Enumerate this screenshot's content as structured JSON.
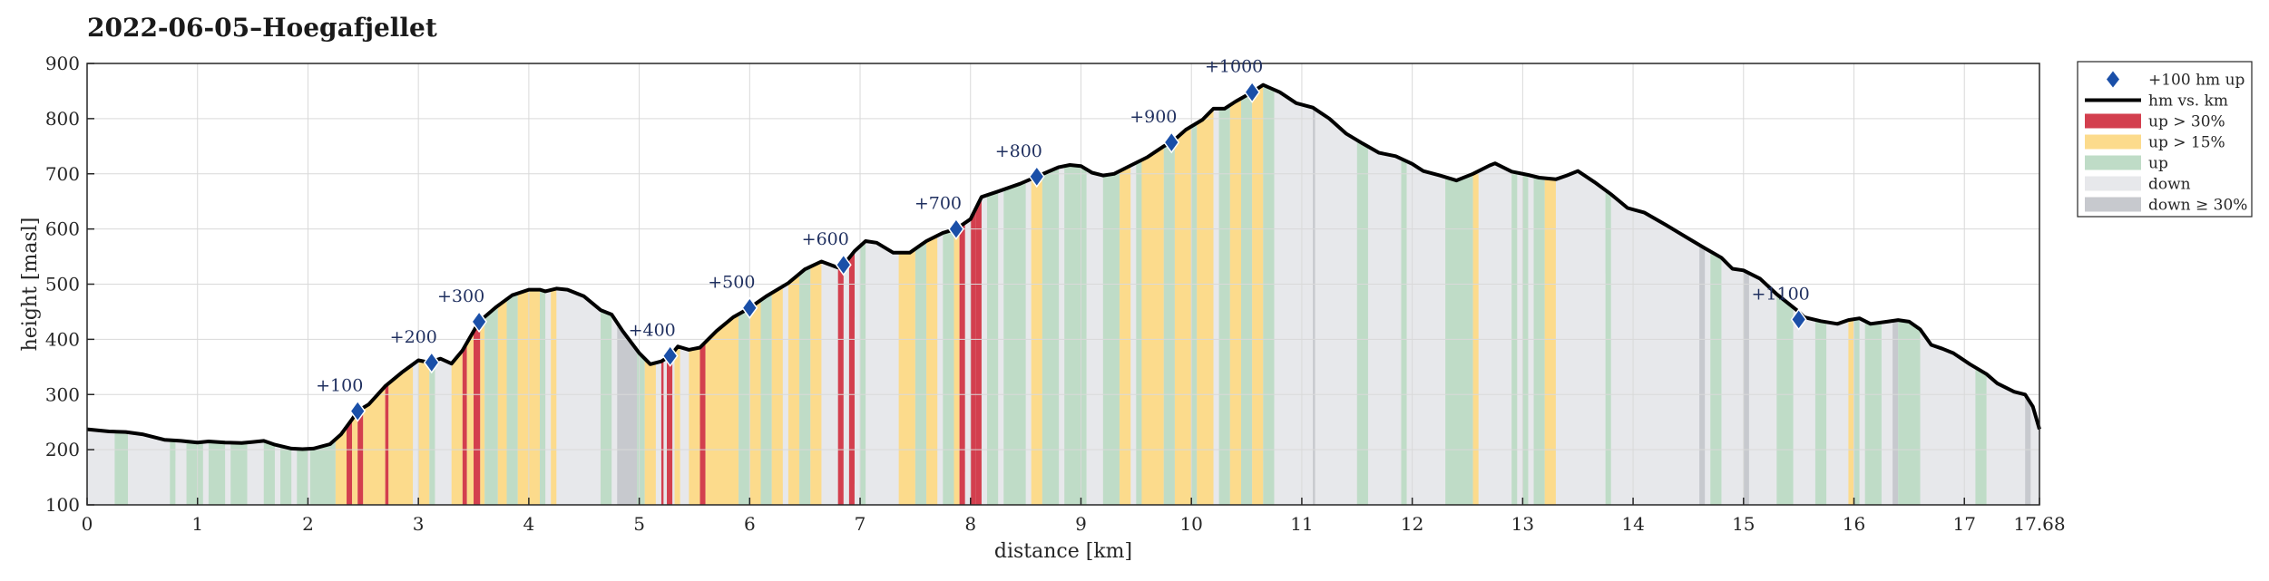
{
  "chart_data": {
    "type": "area",
    "title": "2022-06-05–Hoegafjellet",
    "xlabel": "distance [km]",
    "ylabel": "height [masl]",
    "xlim": [
      0,
      17.68
    ],
    "ylim": [
      100,
      900
    ],
    "xticks": [
      "0",
      "1",
      "2",
      "3",
      "4",
      "5",
      "6",
      "7",
      "8",
      "9",
      "10",
      "11",
      "12",
      "13",
      "14",
      "15",
      "16",
      "17",
      "17.68"
    ],
    "xtick_values": [
      0,
      1,
      2,
      3,
      4,
      5,
      6,
      7,
      8,
      9,
      10,
      11,
      12,
      13,
      14,
      15,
      16,
      17,
      17.68
    ],
    "yticks": [
      "100",
      "200",
      "300",
      "400",
      "500",
      "600",
      "700",
      "800",
      "900"
    ],
    "ytick_values": [
      100,
      200,
      300,
      400,
      500,
      600,
      700,
      800,
      900
    ],
    "grid": true,
    "legend_position": "outside-top-right",
    "legend": [
      {
        "key": "milestone",
        "label": "+100 hm up"
      },
      {
        "key": "line",
        "label": "hm vs. km"
      },
      {
        "key": "up30",
        "label": "up > 30%"
      },
      {
        "key": "up15",
        "label": "up > 15%"
      },
      {
        "key": "up",
        "label": "up"
      },
      {
        "key": "down",
        "label": "down"
      },
      {
        "key": "down30",
        "label": "down ≥ 30%"
      }
    ],
    "colors": {
      "line": "#000000",
      "marker": "#1a4fa8",
      "marker_text": "#1f2f5f",
      "up30": "#d33f4e",
      "up15": "#fcdb8c",
      "up": "#bfdcc7",
      "down": "#e7e8eb",
      "down30": "#c7c9ce",
      "grid": "#d9d9d9"
    },
    "profile": [
      [
        0,
        237
      ],
      [
        0.2,
        233
      ],
      [
        0.35,
        232
      ],
      [
        0.5,
        228
      ],
      [
        0.7,
        218
      ],
      [
        0.85,
        216
      ],
      [
        1.0,
        213
      ],
      [
        1.1,
        215
      ],
      [
        1.25,
        213
      ],
      [
        1.4,
        212
      ],
      [
        1.5,
        214
      ],
      [
        1.6,
        216
      ],
      [
        1.7,
        209
      ],
      [
        1.85,
        202
      ],
      [
        1.95,
        201
      ],
      [
        2.05,
        202
      ],
      [
        2.2,
        210
      ],
      [
        2.3,
        228
      ],
      [
        2.4,
        255
      ],
      [
        2.45,
        270
      ],
      [
        2.55,
        282
      ],
      [
        2.7,
        315
      ],
      [
        2.85,
        340
      ],
      [
        3.0,
        362
      ],
      [
        3.1,
        358
      ],
      [
        3.2,
        365
      ],
      [
        3.3,
        356
      ],
      [
        3.4,
        380
      ],
      [
        3.55,
        432
      ],
      [
        3.7,
        458
      ],
      [
        3.85,
        480
      ],
      [
        4.0,
        490
      ],
      [
        4.1,
        490
      ],
      [
        4.15,
        487
      ],
      [
        4.25,
        492
      ],
      [
        4.35,
        490
      ],
      [
        4.5,
        478
      ],
      [
        4.65,
        453
      ],
      [
        4.75,
        445
      ],
      [
        4.85,
        415
      ],
      [
        5.0,
        375
      ],
      [
        5.1,
        355
      ],
      [
        5.2,
        360
      ],
      [
        5.28,
        370
      ],
      [
        5.35,
        387
      ],
      [
        5.45,
        381
      ],
      [
        5.55,
        385
      ],
      [
        5.7,
        415
      ],
      [
        5.85,
        440
      ],
      [
        6.0,
        457
      ],
      [
        6.15,
        478
      ],
      [
        6.35,
        502
      ],
      [
        6.5,
        527
      ],
      [
        6.65,
        541
      ],
      [
        6.8,
        530
      ],
      [
        6.85,
        535
      ],
      [
        6.95,
        560
      ],
      [
        7.05,
        578
      ],
      [
        7.15,
        575
      ],
      [
        7.3,
        557
      ],
      [
        7.45,
        557
      ],
      [
        7.6,
        578
      ],
      [
        7.75,
        593
      ],
      [
        7.87,
        600
      ],
      [
        8.0,
        618
      ],
      [
        8.1,
        658
      ],
      [
        8.25,
        668
      ],
      [
        8.45,
        682
      ],
      [
        8.6,
        695
      ],
      [
        8.8,
        712
      ],
      [
        8.9,
        716
      ],
      [
        9.0,
        714
      ],
      [
        9.1,
        702
      ],
      [
        9.2,
        697
      ],
      [
        9.3,
        700
      ],
      [
        9.45,
        715
      ],
      [
        9.6,
        730
      ],
      [
        9.75,
        750
      ],
      [
        9.82,
        757
      ],
      [
        9.95,
        780
      ],
      [
        10.1,
        798
      ],
      [
        10.2,
        818
      ],
      [
        10.3,
        818
      ],
      [
        10.4,
        831
      ],
      [
        10.55,
        848
      ],
      [
        10.65,
        861
      ],
      [
        10.8,
        848
      ],
      [
        10.95,
        828
      ],
      [
        11.1,
        820
      ],
      [
        11.25,
        800
      ],
      [
        11.4,
        773
      ],
      [
        11.55,
        755
      ],
      [
        11.7,
        738
      ],
      [
        11.85,
        732
      ],
      [
        12.0,
        718
      ],
      [
        12.1,
        705
      ],
      [
        12.25,
        697
      ],
      [
        12.4,
        688
      ],
      [
        12.55,
        700
      ],
      [
        12.7,
        715
      ],
      [
        12.75,
        719
      ],
      [
        12.9,
        704
      ],
      [
        13.05,
        698
      ],
      [
        13.15,
        693
      ],
      [
        13.3,
        690
      ],
      [
        13.4,
        697
      ],
      [
        13.5,
        705
      ],
      [
        13.65,
        685
      ],
      [
        13.8,
        663
      ],
      [
        13.95,
        638
      ],
      [
        14.1,
        630
      ],
      [
        14.3,
        607
      ],
      [
        14.5,
        583
      ],
      [
        14.65,
        565
      ],
      [
        14.8,
        548
      ],
      [
        14.9,
        528
      ],
      [
        15.0,
        525
      ],
      [
        15.15,
        510
      ],
      [
        15.3,
        482
      ],
      [
        15.5,
        450
      ],
      [
        15.55,
        440
      ],
      [
        15.7,
        433
      ],
      [
        15.85,
        428
      ],
      [
        15.95,
        435
      ],
      [
        16.05,
        438
      ],
      [
        16.15,
        428
      ],
      [
        16.3,
        432
      ],
      [
        16.4,
        435
      ],
      [
        16.5,
        432
      ],
      [
        16.6,
        418
      ],
      [
        16.7,
        390
      ],
      [
        16.8,
        383
      ],
      [
        16.9,
        375
      ],
      [
        17.05,
        355
      ],
      [
        17.2,
        337
      ],
      [
        17.3,
        320
      ],
      [
        17.45,
        305
      ],
      [
        17.55,
        300
      ],
      [
        17.62,
        278
      ],
      [
        17.68,
        237
      ]
    ],
    "milestones": [
      {
        "x": 2.45,
        "y": 270,
        "label": "+100"
      },
      {
        "x": 3.12,
        "y": 358,
        "label": "+200"
      },
      {
        "x": 3.55,
        "y": 432,
        "label": "+300"
      },
      {
        "x": 5.28,
        "y": 370,
        "label": "+400"
      },
      {
        "x": 6.0,
        "y": 457,
        "label": "+500"
      },
      {
        "x": 6.85,
        "y": 535,
        "label": "+600"
      },
      {
        "x": 7.87,
        "y": 600,
        "label": "+700"
      },
      {
        "x": 8.6,
        "y": 695,
        "label": "+800"
      },
      {
        "x": 9.82,
        "y": 757,
        "label": "+900"
      },
      {
        "x": 10.55,
        "y": 848,
        "label": "+1000"
      },
      {
        "x": 15.5,
        "y": 436,
        "label": "+1100"
      }
    ],
    "segments": [
      [
        0.25,
        0.37,
        "up"
      ],
      [
        0.75,
        0.8,
        "up"
      ],
      [
        0.9,
        1.05,
        "up"
      ],
      [
        1.1,
        1.25,
        "up"
      ],
      [
        1.3,
        1.45,
        "up"
      ],
      [
        1.6,
        1.7,
        "up"
      ],
      [
        1.75,
        1.85,
        "up"
      ],
      [
        1.9,
        2.0,
        "up"
      ],
      [
        2.02,
        2.25,
        "up"
      ],
      [
        2.25,
        2.35,
        "up15"
      ],
      [
        2.35,
        2.4,
        "up30"
      ],
      [
        2.4,
        2.45,
        "up15"
      ],
      [
        2.45,
        2.5,
        "up30"
      ],
      [
        2.5,
        2.7,
        "up15"
      ],
      [
        2.7,
        2.73,
        "up30"
      ],
      [
        2.73,
        2.95,
        "up15"
      ],
      [
        3.0,
        3.1,
        "up15"
      ],
      [
        3.1,
        3.15,
        "up"
      ],
      [
        3.3,
        3.4,
        "up15"
      ],
      [
        3.4,
        3.44,
        "up30"
      ],
      [
        3.44,
        3.5,
        "up15"
      ],
      [
        3.5,
        3.56,
        "up30"
      ],
      [
        3.56,
        3.6,
        "up15"
      ],
      [
        3.6,
        3.72,
        "up"
      ],
      [
        3.72,
        3.8,
        "up15"
      ],
      [
        3.8,
        3.9,
        "up"
      ],
      [
        3.9,
        4.1,
        "up15"
      ],
      [
        4.1,
        4.15,
        "up"
      ],
      [
        4.2,
        4.25,
        "up15"
      ],
      [
        4.65,
        4.75,
        "up"
      ],
      [
        4.8,
        4.98,
        "down30"
      ],
      [
        4.98,
        5.05,
        "up"
      ],
      [
        5.05,
        5.15,
        "up15"
      ],
      [
        5.2,
        5.22,
        "up30"
      ],
      [
        5.25,
        5.3,
        "up30"
      ],
      [
        5.32,
        5.37,
        "up15"
      ],
      [
        5.45,
        5.55,
        "up15"
      ],
      [
        5.55,
        5.6,
        "up30"
      ],
      [
        5.6,
        5.9,
        "up15"
      ],
      [
        5.9,
        6.0,
        "up"
      ],
      [
        6.0,
        6.1,
        "up15"
      ],
      [
        6.1,
        6.2,
        "up"
      ],
      [
        6.2,
        6.3,
        "up15"
      ],
      [
        6.35,
        6.45,
        "up15"
      ],
      [
        6.45,
        6.55,
        "up"
      ],
      [
        6.55,
        6.65,
        "up15"
      ],
      [
        6.8,
        6.85,
        "up30"
      ],
      [
        6.9,
        6.95,
        "up30"
      ],
      [
        7.0,
        7.05,
        "up"
      ],
      [
        7.35,
        7.5,
        "up15"
      ],
      [
        7.5,
        7.6,
        "up"
      ],
      [
        7.6,
        7.7,
        "up15"
      ],
      [
        7.75,
        7.85,
        "up"
      ],
      [
        7.85,
        7.9,
        "up15"
      ],
      [
        7.9,
        7.95,
        "up30"
      ],
      [
        8.0,
        8.05,
        "up30"
      ],
      [
        8.05,
        8.1,
        "up30"
      ],
      [
        8.15,
        8.25,
        "up"
      ],
      [
        8.3,
        8.5,
        "up"
      ],
      [
        8.55,
        8.65,
        "up15"
      ],
      [
        8.65,
        8.8,
        "up"
      ],
      [
        8.85,
        9.05,
        "up"
      ],
      [
        9.2,
        9.35,
        "up"
      ],
      [
        9.35,
        9.45,
        "up15"
      ],
      [
        9.5,
        9.6,
        "up"
      ],
      [
        9.55,
        9.75,
        "up15"
      ],
      [
        9.75,
        9.85,
        "up"
      ],
      [
        9.85,
        10.0,
        "up15"
      ],
      [
        10.0,
        10.05,
        "up"
      ],
      [
        10.05,
        10.2,
        "up15"
      ],
      [
        10.25,
        10.35,
        "up"
      ],
      [
        10.35,
        10.45,
        "up15"
      ],
      [
        10.45,
        10.55,
        "up"
      ],
      [
        10.55,
        10.65,
        "up15"
      ],
      [
        10.65,
        10.75,
        "up"
      ],
      [
        11.1,
        11.12,
        "down30"
      ],
      [
        11.5,
        11.6,
        "up"
      ],
      [
        11.9,
        11.95,
        "up"
      ],
      [
        12.3,
        12.55,
        "up"
      ],
      [
        12.55,
        12.6,
        "up15"
      ],
      [
        12.9,
        12.95,
        "up"
      ],
      [
        13.0,
        13.05,
        "up"
      ],
      [
        13.1,
        13.2,
        "up"
      ],
      [
        13.2,
        13.3,
        "up15"
      ],
      [
        13.75,
        13.8,
        "up"
      ],
      [
        14.6,
        14.65,
        "down30"
      ],
      [
        14.7,
        14.8,
        "up"
      ],
      [
        15.0,
        15.05,
        "down30"
      ],
      [
        15.3,
        15.45,
        "up"
      ],
      [
        15.65,
        15.75,
        "up"
      ],
      [
        15.95,
        16.0,
        "up15"
      ],
      [
        16.0,
        16.05,
        "up"
      ],
      [
        16.1,
        16.25,
        "up"
      ],
      [
        16.35,
        16.4,
        "down30"
      ],
      [
        16.4,
        16.6,
        "up"
      ],
      [
        17.1,
        17.2,
        "up"
      ],
      [
        17.55,
        17.6,
        "down30"
      ]
    ]
  }
}
